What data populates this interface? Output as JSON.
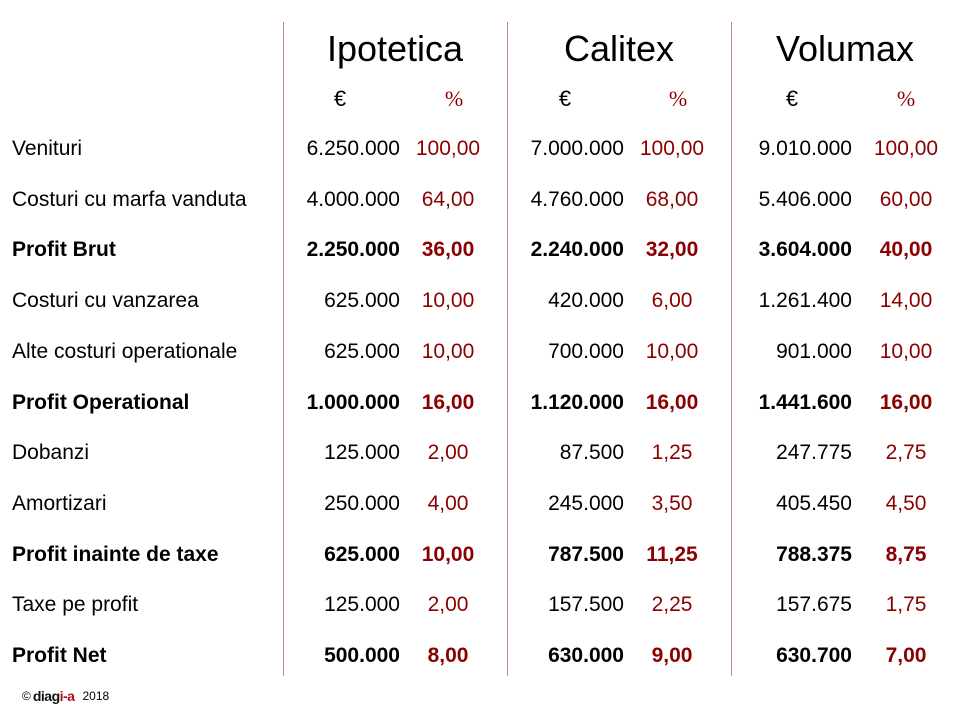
{
  "columns": [
    {
      "name": "Ipotetica",
      "currency": "€",
      "percent": "%"
    },
    {
      "name": "Calitex",
      "currency": "€",
      "percent": "%"
    },
    {
      "name": "Volumax",
      "currency": "€",
      "percent": "%"
    }
  ],
  "rows": [
    {
      "label": "Venituri",
      "bold": false,
      "values": [
        [
          "6.250.000",
          "100,00"
        ],
        [
          "7.000.000",
          "100,00"
        ],
        [
          "9.010.000",
          "100,00"
        ]
      ]
    },
    {
      "label": "Costuri cu marfa vanduta",
      "bold": false,
      "values": [
        [
          "4.000.000",
          "64,00"
        ],
        [
          "4.760.000",
          "68,00"
        ],
        [
          "5.406.000",
          "60,00"
        ]
      ]
    },
    {
      "label": "Profit Brut",
      "bold": true,
      "values": [
        [
          "2.250.000",
          "36,00"
        ],
        [
          "2.240.000",
          "32,00"
        ],
        [
          "3.604.000",
          "40,00"
        ]
      ]
    },
    {
      "label": "Costuri cu vanzarea",
      "bold": false,
      "values": [
        [
          "625.000",
          "10,00"
        ],
        [
          "420.000",
          "6,00"
        ],
        [
          "1.261.400",
          "14,00"
        ]
      ]
    },
    {
      "label": "Alte costuri operationale",
      "bold": false,
      "values": [
        [
          "625.000",
          "10,00"
        ],
        [
          "700.000",
          "10,00"
        ],
        [
          "901.000",
          "10,00"
        ]
      ]
    },
    {
      "label": "Profit Operational",
      "bold": true,
      "values": [
        [
          "1.000.000",
          "16,00"
        ],
        [
          "1.120.000",
          "16,00"
        ],
        [
          "1.441.600",
          "16,00"
        ]
      ]
    },
    {
      "label": "Dobanzi",
      "bold": false,
      "values": [
        [
          "125.000",
          "2,00"
        ],
        [
          "87.500",
          "1,25"
        ],
        [
          "247.775",
          "2,75"
        ]
      ]
    },
    {
      "label": "Amortizari",
      "bold": false,
      "values": [
        [
          "250.000",
          "4,00"
        ],
        [
          "245.000",
          "3,50"
        ],
        [
          "405.450",
          "4,50"
        ]
      ]
    },
    {
      "label": "Profit inainte de taxe",
      "bold": true,
      "values": [
        [
          "625.000",
          "10,00"
        ],
        [
          "787.500",
          "11,25"
        ],
        [
          "788.375",
          "8,75"
        ]
      ]
    },
    {
      "label": "Taxe pe profit",
      "bold": false,
      "values": [
        [
          "125.000",
          "2,00"
        ],
        [
          "157.500",
          "2,25"
        ],
        [
          "157.675",
          "1,75"
        ]
      ]
    },
    {
      "label": "Profit Net",
      "bold": true,
      "values": [
        [
          "500.000",
          "8,00"
        ],
        [
          "630.000",
          "9,00"
        ],
        [
          "630.700",
          "7,00"
        ]
      ]
    }
  ],
  "footer": {
    "copyright": "©",
    "logo_a": "diag",
    "logo_b": "i-a",
    "year": "2018"
  }
}
